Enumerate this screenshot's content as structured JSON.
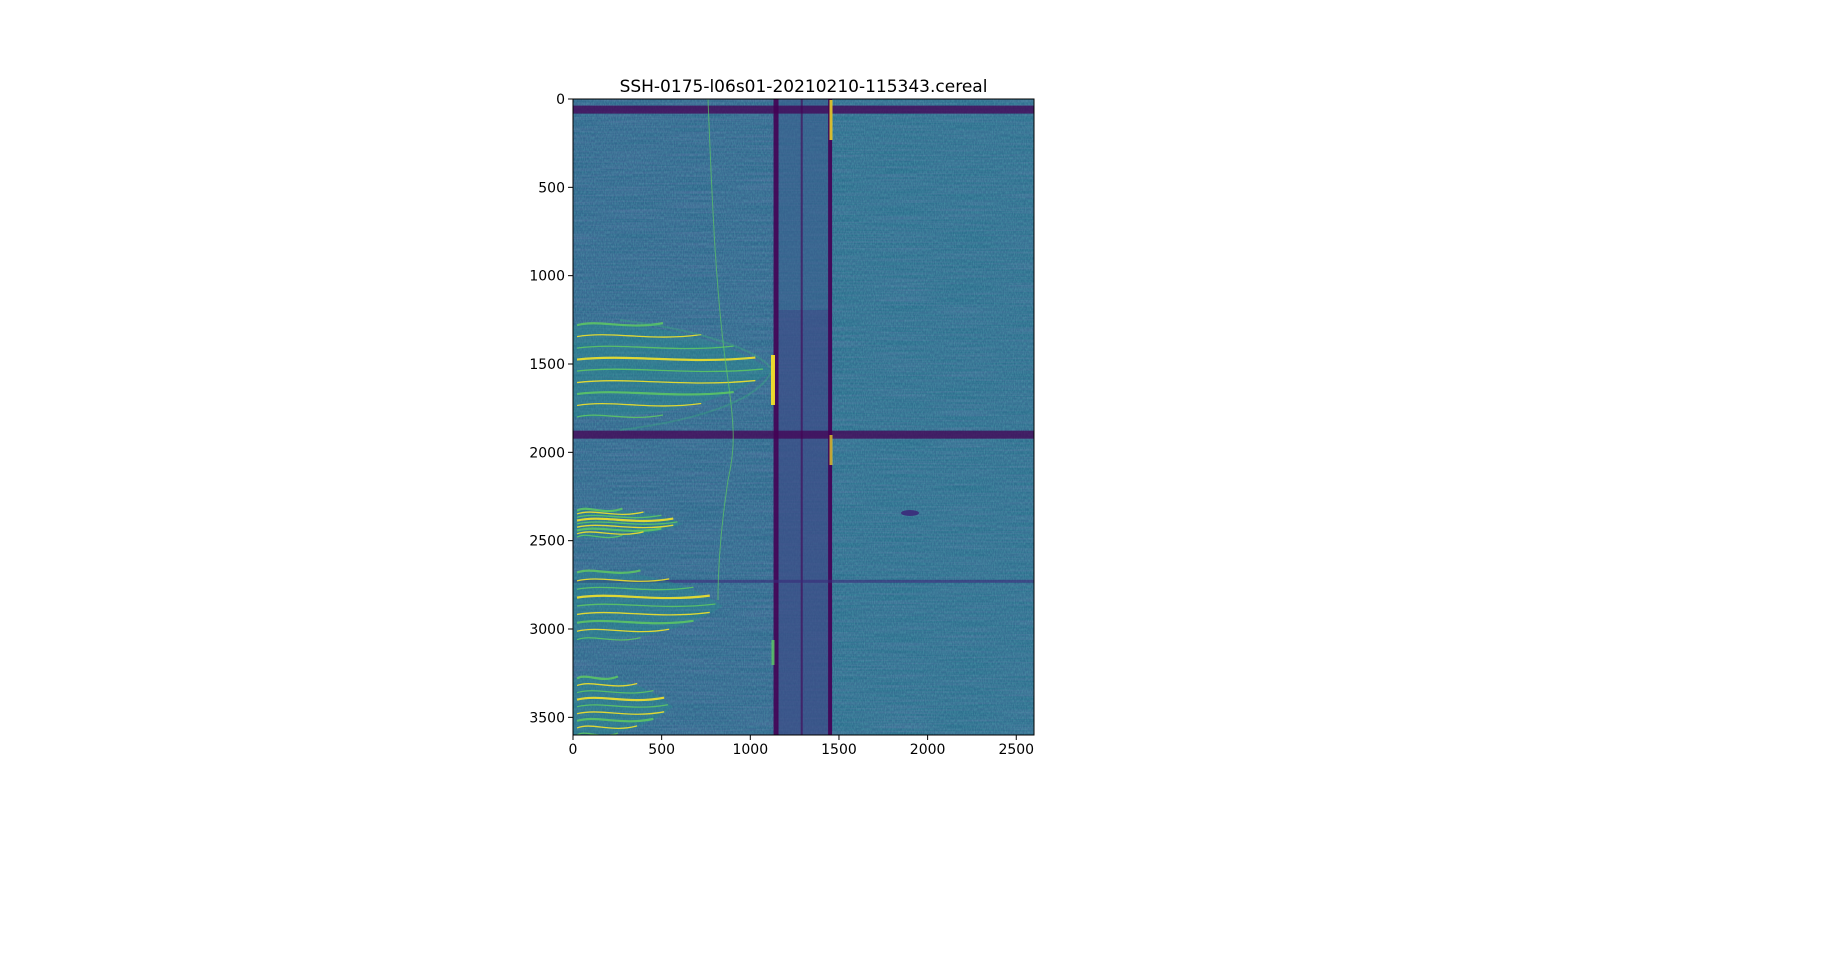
{
  "chart_data": {
    "type": "heatmap",
    "title": "SSH-0175-l06s01-20210210-115343.cereal",
    "xlabel": "",
    "ylabel": "",
    "xlim": [
      0,
      2600
    ],
    "ylim": [
      3600,
      0
    ],
    "x_ticks": [
      0,
      500,
      1000,
      1500,
      2000,
      2500
    ],
    "y_ticks": [
      0,
      500,
      1000,
      1500,
      2000,
      2500,
      3000,
      3500
    ],
    "x_tick_labels": [
      "0",
      "500",
      "1000",
      "1500",
      "2000",
      "2500"
    ],
    "y_tick_labels": [
      "0",
      "500",
      "1000",
      "1500",
      "2000",
      "2500",
      "3000",
      "3500"
    ],
    "grid": false,
    "colormap": "viridis",
    "colors": {
      "background": "#2d6f8e",
      "dark": "#440154",
      "deep": "#3b2a7a",
      "mid": "#21918c",
      "bright": "#5ec962",
      "yellow": "#fde725"
    },
    "features": {
      "vertical_dark_bands_x": [
        1145,
        1290,
        1450
      ],
      "horizontal_dark_bands_y": [
        60,
        1900,
        2730
      ],
      "bright_regions_y": [
        [
          1280,
          1800
        ],
        [
          2330,
          2480
        ],
        [
          2680,
          3060
        ],
        [
          3280,
          3600
        ]
      ]
    }
  }
}
